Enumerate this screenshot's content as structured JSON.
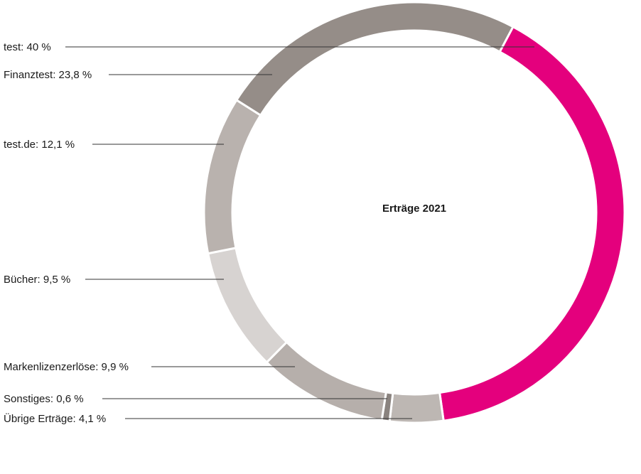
{
  "chart_data": {
    "type": "pie",
    "subtype": "donut",
    "title": "Erträge 2021",
    "unit": "%",
    "start_angle_deg": 28,
    "direction": "clockwise",
    "slices": [
      {
        "name": "test",
        "value": 40,
        "label": "test: 40 %",
        "color": "#e4007d"
      },
      {
        "name": "Übrige Erträge",
        "value": 4.1,
        "label": "Übrige Erträge: 4,1 %",
        "color": "#bdb7b3"
      },
      {
        "name": "Sonstiges",
        "value": 0.6,
        "label": "Sonstiges: 0,6 %",
        "color": "#8a837f"
      },
      {
        "name": "Markenlizenzerlöse",
        "value": 9.9,
        "label": "Markenlizenzerlöse: 9,9 %",
        "color": "#b6afab"
      },
      {
        "name": "Bücher",
        "value": 9.5,
        "label": "Bücher: 9,5 %",
        "color": "#d7d3d1"
      },
      {
        "name": "test.de",
        "value": 12.1,
        "label": "test.de: 12,1 %",
        "color": "#b9b2ae"
      },
      {
        "name": "Finanztest",
        "value": 23.8,
        "label": "Finanztest: 23,8 %",
        "color": "#958d88"
      }
    ]
  }
}
